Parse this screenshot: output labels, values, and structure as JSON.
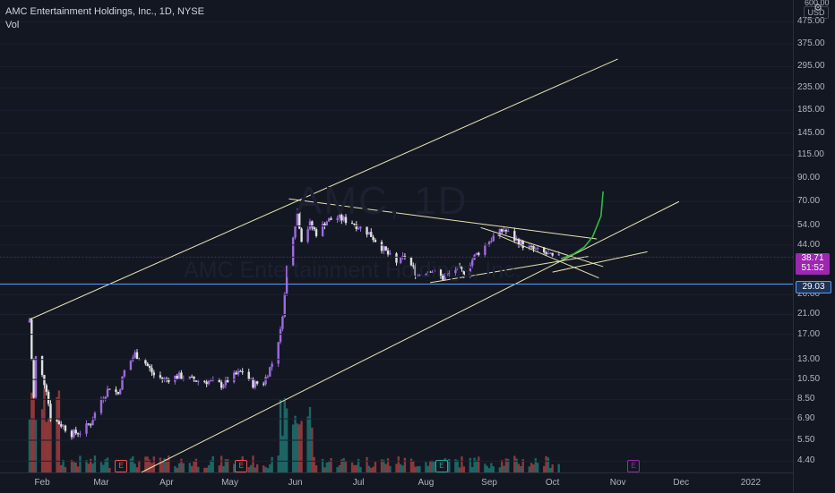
{
  "header": {
    "title": "AMC Entertainment Holdings, Inc., 1D, NYSE",
    "indicator": "Vol"
  },
  "watermark": {
    "symbol": "AMC, 1D",
    "name": "AMC Entertainment Holdings, Inc."
  },
  "price_axis": {
    "currency": "USD",
    "top_tick": "600.00",
    "last_price": "38.71",
    "countdown": "51:52",
    "marked_level": "29.03"
  },
  "earnings_markers": [
    {
      "label": "E",
      "date": "2021-03-10",
      "color": "#ef5350"
    },
    {
      "label": "E",
      "date": "2021-05-06",
      "color": "#ef5350"
    },
    {
      "label": "E",
      "date": "2021-08-09",
      "color": "#26a69a"
    },
    {
      "label": "E",
      "date": "2021-11-08",
      "color": "#9c27b0"
    }
  ],
  "chart_data": {
    "type": "candlestick",
    "title": "AMC Entertainment Holdings, Inc., 1D, NYSE",
    "y_scale": "log",
    "y_ticks": [
      "4.40",
      "5.50",
      "6.90",
      "8.50",
      "10.50",
      "13.00",
      "17.00",
      "21.00",
      "26.00",
      "29.03",
      "38.71",
      "44.00",
      "54.00",
      "70.00",
      "90.00",
      "115.00",
      "145.00",
      "185.00",
      "235.00",
      "295.00",
      "375.00",
      "475.00"
    ],
    "ylim": [
      3.9,
      600
    ],
    "x_ticks": [
      {
        "label": "Feb",
        "date": "2021-02-01"
      },
      {
        "label": "Mar",
        "date": "2021-03-01"
      },
      {
        "label": "Apr",
        "date": "2021-04-01"
      },
      {
        "label": "May",
        "date": "2021-05-01"
      },
      {
        "label": "Jun",
        "date": "2021-06-01"
      },
      {
        "label": "Jul",
        "date": "2021-07-01"
      },
      {
        "label": "Aug",
        "date": "2021-08-02"
      },
      {
        "label": "Sep",
        "date": "2021-09-01"
      },
      {
        "label": "Oct",
        "date": "2021-10-01"
      },
      {
        "label": "Nov",
        "date": "2021-11-01"
      },
      {
        "label": "Dec",
        "date": "2021-12-01"
      },
      {
        "label": "2022",
        "date": "2022-01-03"
      }
    ],
    "xlim": [
      "2021-01-12",
      "2022-01-23"
    ],
    "series": [
      {
        "name": "Price",
        "close": [
          [
            "2021-01-26",
            19.9
          ],
          [
            "2021-01-27",
            13.0
          ],
          [
            "2021-01-28",
            8.6
          ],
          [
            "2021-01-29",
            13.3
          ],
          [
            "2021-02-03",
            9.5
          ],
          [
            "2021-02-05",
            7.0
          ],
          [
            "2021-02-10",
            6.5
          ],
          [
            "2021-02-15",
            5.9
          ],
          [
            "2021-02-19",
            6.0
          ],
          [
            "2021-02-24",
            6.6
          ],
          [
            "2021-03-01",
            8.5
          ],
          [
            "2021-03-05",
            9.7
          ],
          [
            "2021-03-09",
            9.0
          ],
          [
            "2021-03-12",
            11.5
          ],
          [
            "2021-03-17",
            13.8
          ],
          [
            "2021-03-22",
            12.5
          ],
          [
            "2021-03-26",
            11.0
          ],
          [
            "2021-03-31",
            10.5
          ],
          [
            "2021-04-07",
            10.9
          ],
          [
            "2021-04-14",
            10.4
          ],
          [
            "2021-04-21",
            10.3
          ],
          [
            "2021-04-27",
            9.9
          ],
          [
            "2021-05-03",
            10.9
          ],
          [
            "2021-05-07",
            11.5
          ],
          [
            "2021-05-12",
            10.0
          ],
          [
            "2021-05-17",
            10.2
          ],
          [
            "2021-05-21",
            12.5
          ],
          [
            "2021-05-25",
            17.5
          ],
          [
            "2021-05-27",
            26.0
          ],
          [
            "2021-05-28",
            35.0
          ],
          [
            "2021-06-02",
            62.6
          ],
          [
            "2021-06-04",
            47.0
          ],
          [
            "2021-06-08",
            55.0
          ],
          [
            "2021-06-11",
            50.0
          ],
          [
            "2021-06-16",
            57.0
          ],
          [
            "2021-06-21",
            59.0
          ],
          [
            "2021-06-28",
            56.0
          ],
          [
            "2021-07-06",
            50.0
          ],
          [
            "2021-07-12",
            43.0
          ],
          [
            "2021-07-19",
            36.0
          ],
          [
            "2021-07-23",
            39.0
          ],
          [
            "2021-07-29",
            32.0
          ],
          [
            "2021-08-04",
            34.0
          ],
          [
            "2021-08-10",
            31.0
          ],
          [
            "2021-08-16",
            34.0
          ],
          [
            "2021-08-20",
            33.0
          ],
          [
            "2021-08-25",
            39.0
          ],
          [
            "2021-08-31",
            45.0
          ],
          [
            "2021-09-03",
            48.0
          ],
          [
            "2021-09-08",
            52.0
          ],
          [
            "2021-09-13",
            47.0
          ],
          [
            "2021-09-17",
            44.0
          ],
          [
            "2021-09-22",
            42.0
          ],
          [
            "2021-09-28",
            40.0
          ],
          [
            "2021-10-01",
            38.5
          ],
          [
            "2021-10-05",
            38.71
          ]
        ]
      },
      {
        "name": "Vol",
        "color_up": "#26a69a",
        "color_down": "#ef5350"
      }
    ],
    "annotations": [
      {
        "type": "horizontal_line",
        "value": 29.03,
        "color": "#5b9cf6"
      },
      {
        "type": "projection_curve",
        "color": "#2ebd3b"
      },
      {
        "type": "trendlines",
        "color": "#e8e5b2",
        "count": 8
      }
    ]
  }
}
